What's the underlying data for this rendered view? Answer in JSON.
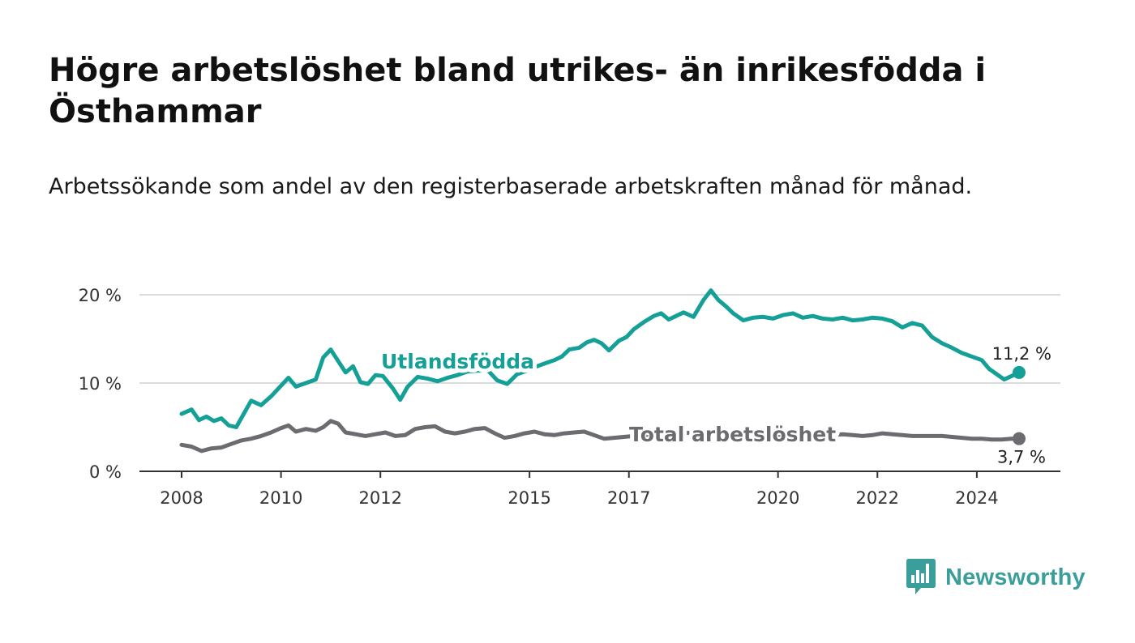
{
  "title": "Högre arbetslöshet bland utrikes- än inrikesfödda i Östhammar",
  "subtitle": "Arbetssökande som andel av den registerbaserade arbetskraften månad för månad.",
  "brand": {
    "name": "Newsworthy",
    "color": "#3a9e9a",
    "icon": "bar-chart-speech-bubble-icon"
  },
  "chart_data": {
    "type": "line",
    "title": "Högre arbetslöshet bland utrikes- än inrikesfödda i Östhammar",
    "subtitle": "Arbetssökande som andel av den registerbaserade arbetskraften månad för månad.",
    "xlabel": "",
    "ylabel": "",
    "xlim": [
      2008.0,
      2025.2
    ],
    "ylim": [
      0,
      20
    ],
    "y_ticks": [
      0,
      10,
      20
    ],
    "y_tick_labels": [
      "0 %",
      "10 %",
      "20 %"
    ],
    "x_ticks": [
      2008,
      2010,
      2012,
      2015,
      2017,
      2020,
      2022,
      2024
    ],
    "x_tick_labels": [
      "2008",
      "2010",
      "2012",
      "2015",
      "2017",
      "2020",
      "2022",
      "2024"
    ],
    "grid": true,
    "legend": "inline labels",
    "series": [
      {
        "name": "Utlandsfödda",
        "color": "#14a096",
        "end_label": "11,2 %",
        "x": [
          2008.0,
          2008.2,
          2008.35,
          2008.5,
          2008.65,
          2008.8,
          2008.95,
          2009.1,
          2009.25,
          2009.4,
          2009.6,
          2009.8,
          2010.0,
          2010.15,
          2010.3,
          2010.5,
          2010.7,
          2010.85,
          2011.0,
          2011.15,
          2011.3,
          2011.45,
          2011.6,
          2011.75,
          2011.9,
          2012.05,
          2012.25,
          2012.4,
          2012.55,
          2012.75,
          2012.95,
          2013.15,
          2013.35,
          2013.55,
          2013.75,
          2013.95,
          2014.15,
          2014.35,
          2014.55,
          2014.75,
          2014.95,
          2015.15,
          2015.35,
          2015.5,
          2015.65,
          2015.8,
          2016.0,
          2016.15,
          2016.3,
          2016.45,
          2016.6,
          2016.8,
          2016.95,
          2017.1,
          2017.3,
          2017.5,
          2017.65,
          2017.8,
          2017.95,
          2018.1,
          2018.3,
          2018.5,
          2018.65,
          2018.8,
          2018.95,
          2019.1,
          2019.3,
          2019.5,
          2019.7,
          2019.9,
          2020.1,
          2020.3,
          2020.5,
          2020.7,
          2020.9,
          2021.1,
          2021.3,
          2021.5,
          2021.7,
          2021.9,
          2022.1,
          2022.3,
          2022.5,
          2022.7,
          2022.9,
          2023.1,
          2023.3,
          2023.5,
          2023.7,
          2023.9,
          2024.1,
          2024.25,
          2024.4,
          2024.55,
          2024.7,
          2024.85
        ],
        "values": [
          6.5,
          7.0,
          5.8,
          6.2,
          5.7,
          6.0,
          5.2,
          5.0,
          6.5,
          8.0,
          7.5,
          8.5,
          9.7,
          10.6,
          9.6,
          10.0,
          10.4,
          12.9,
          13.8,
          12.5,
          11.2,
          11.9,
          10.1,
          9.9,
          10.9,
          10.8,
          9.4,
          8.1,
          9.6,
          10.7,
          10.5,
          10.2,
          10.6,
          10.9,
          11.3,
          11.4,
          11.5,
          10.3,
          9.9,
          11.0,
          11.4,
          11.9,
          12.3,
          12.6,
          13.0,
          13.8,
          14.0,
          14.6,
          14.9,
          14.5,
          13.7,
          14.8,
          15.2,
          16.1,
          16.9,
          17.6,
          17.9,
          17.2,
          17.6,
          18.0,
          17.5,
          19.4,
          20.5,
          19.4,
          18.7,
          17.9,
          17.1,
          17.4,
          17.5,
          17.3,
          17.7,
          17.9,
          17.4,
          17.6,
          17.3,
          17.2,
          17.4,
          17.1,
          17.2,
          17.4,
          17.3,
          17.0,
          16.3,
          16.8,
          16.5,
          15.2,
          14.5,
          14.0,
          13.4,
          13.0,
          12.6,
          11.6,
          11.0,
          10.4,
          10.8,
          11.2
        ]
      },
      {
        "name": "Total arbetslöshet",
        "color": "#6b6b70",
        "end_label": "3,7 %",
        "x": [
          2008.0,
          2008.2,
          2008.4,
          2008.6,
          2008.8,
          2009.0,
          2009.2,
          2009.4,
          2009.6,
          2009.8,
          2010.0,
          2010.15,
          2010.3,
          2010.5,
          2010.7,
          2010.85,
          2011.0,
          2011.15,
          2011.3,
          2011.5,
          2011.7,
          2011.9,
          2012.1,
          2012.3,
          2012.5,
          2012.7,
          2012.9,
          2013.1,
          2013.3,
          2013.5,
          2013.7,
          2013.9,
          2014.1,
          2014.3,
          2014.5,
          2014.7,
          2014.9,
          2015.1,
          2015.3,
          2015.5,
          2015.7,
          2015.9,
          2016.1,
          2016.3,
          2016.5,
          2016.7,
          2016.9,
          2017.1,
          2017.3,
          2017.5,
          2017.7,
          2017.9,
          2018.1,
          2018.3,
          2018.5,
          2018.7,
          2018.9,
          2019.1,
          2019.3,
          2019.5,
          2019.7,
          2019.9,
          2020.1,
          2020.3,
          2020.5,
          2020.7,
          2020.9,
          2021.1,
          2021.3,
          2021.5,
          2021.7,
          2021.9,
          2022.1,
          2022.3,
          2022.5,
          2022.7,
          2022.9,
          2023.1,
          2023.3,
          2023.5,
          2023.7,
          2023.9,
          2024.1,
          2024.3,
          2024.5,
          2024.7,
          2024.85
        ],
        "values": [
          3.0,
          2.8,
          2.3,
          2.6,
          2.7,
          3.1,
          3.5,
          3.7,
          4.0,
          4.4,
          4.9,
          5.2,
          4.5,
          4.8,
          4.6,
          5.0,
          5.7,
          5.4,
          4.4,
          4.2,
          4.0,
          4.2,
          4.4,
          4.0,
          4.1,
          4.8,
          5.0,
          5.1,
          4.5,
          4.3,
          4.5,
          4.8,
          4.9,
          4.3,
          3.8,
          4.0,
          4.3,
          4.5,
          4.2,
          4.1,
          4.3,
          4.4,
          4.5,
          4.1,
          3.7,
          3.8,
          3.9,
          4.0,
          4.1,
          4.2,
          4.3,
          4.4,
          4.4,
          4.3,
          4.4,
          4.5,
          4.5,
          4.3,
          4.2,
          4.2,
          4.1,
          4.1,
          4.2,
          4.0,
          4.1,
          4.2,
          4.1,
          4.1,
          4.2,
          4.1,
          4.0,
          4.1,
          4.3,
          4.2,
          4.1,
          4.0,
          4.0,
          4.0,
          4.0,
          3.9,
          3.8,
          3.7,
          3.7,
          3.6,
          3.6,
          3.7,
          3.7
        ]
      }
    ]
  }
}
